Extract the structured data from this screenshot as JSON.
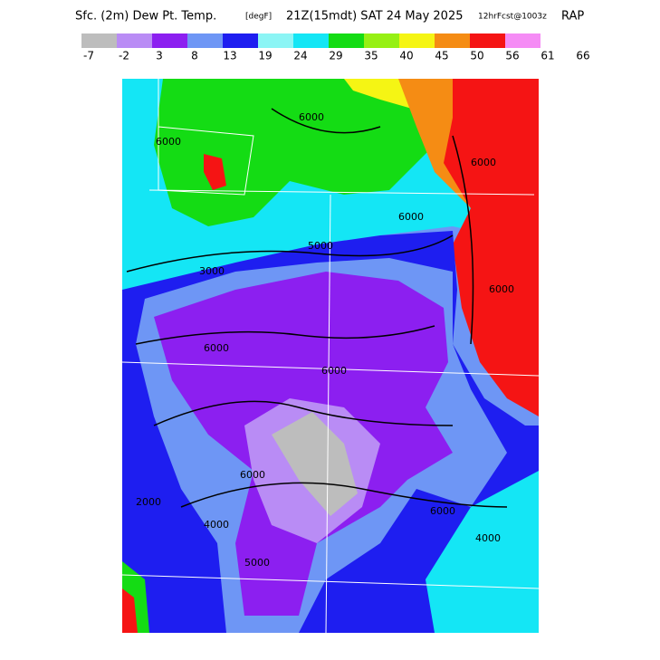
{
  "header": {
    "title": "Sfc. (2m) Dew Pt. Temp.",
    "units": "[degF]",
    "valid": "21Z(15mdt) SAT 24 May 2025",
    "forecast": "12hrFcst@1003z",
    "model": "RAP"
  },
  "legend": {
    "colors": [
      "#bdbdbd",
      "#b98cf5",
      "#8c1ff0",
      "#6e96f5",
      "#1e1ef0",
      "#8cf5f5",
      "#14e6f5",
      "#14dc14",
      "#96f014",
      "#f5f514",
      "#f58c14",
      "#f51414",
      "#f58cf5"
    ],
    "labels": [
      -7,
      -2,
      3,
      8,
      13,
      19,
      24,
      29,
      35,
      40,
      45,
      50,
      56,
      61,
      66
    ]
  },
  "contour_labels": [
    "6000",
    "6000",
    "6000",
    "6000",
    "5000",
    "6000",
    "3000",
    "6000",
    "6000",
    "2000",
    "4000",
    "6000",
    "5000",
    "4000",
    "6000"
  ]
}
